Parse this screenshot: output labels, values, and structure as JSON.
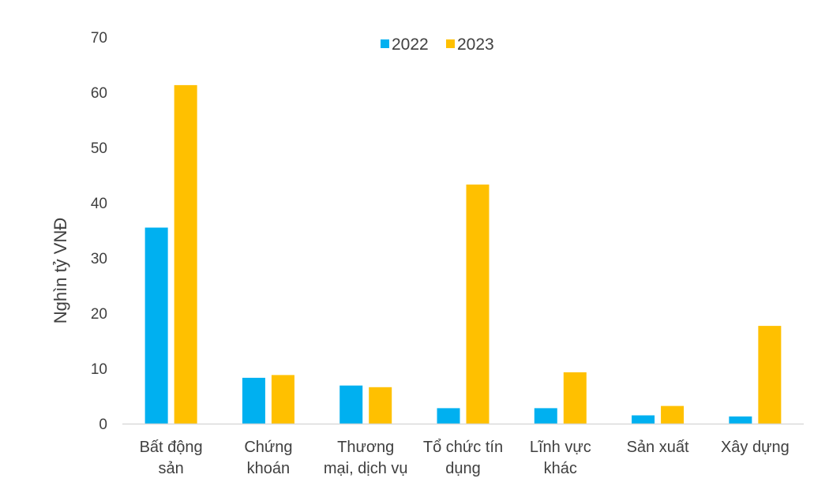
{
  "chart_data": {
    "type": "bar",
    "title": "",
    "xlabel": "",
    "ylabel": "Nghìn tỷ VNĐ",
    "ylim": [
      0,
      70
    ],
    "yticks": [
      0,
      10,
      20,
      30,
      40,
      50,
      60,
      70
    ],
    "grid": false,
    "legend_position": "top-center",
    "categories": [
      [
        "Bất động",
        "sản"
      ],
      [
        "Chứng",
        "khoán"
      ],
      [
        "Thương",
        "mại, dịch vụ"
      ],
      [
        "Tổ chức tín",
        "dụng"
      ],
      [
        "Lĩnh vực",
        "khác"
      ],
      [
        "Sản xuất"
      ],
      [
        "Xây dựng"
      ]
    ],
    "series": [
      {
        "name": "2022",
        "color": "#00B0F0",
        "values": [
          35.5,
          8.3,
          6.9,
          2.8,
          2.8,
          1.5,
          1.3
        ]
      },
      {
        "name": "2023",
        "color": "#FFC000",
        "values": [
          61.3,
          8.8,
          6.6,
          43.3,
          9.3,
          3.2,
          17.7
        ]
      }
    ]
  }
}
